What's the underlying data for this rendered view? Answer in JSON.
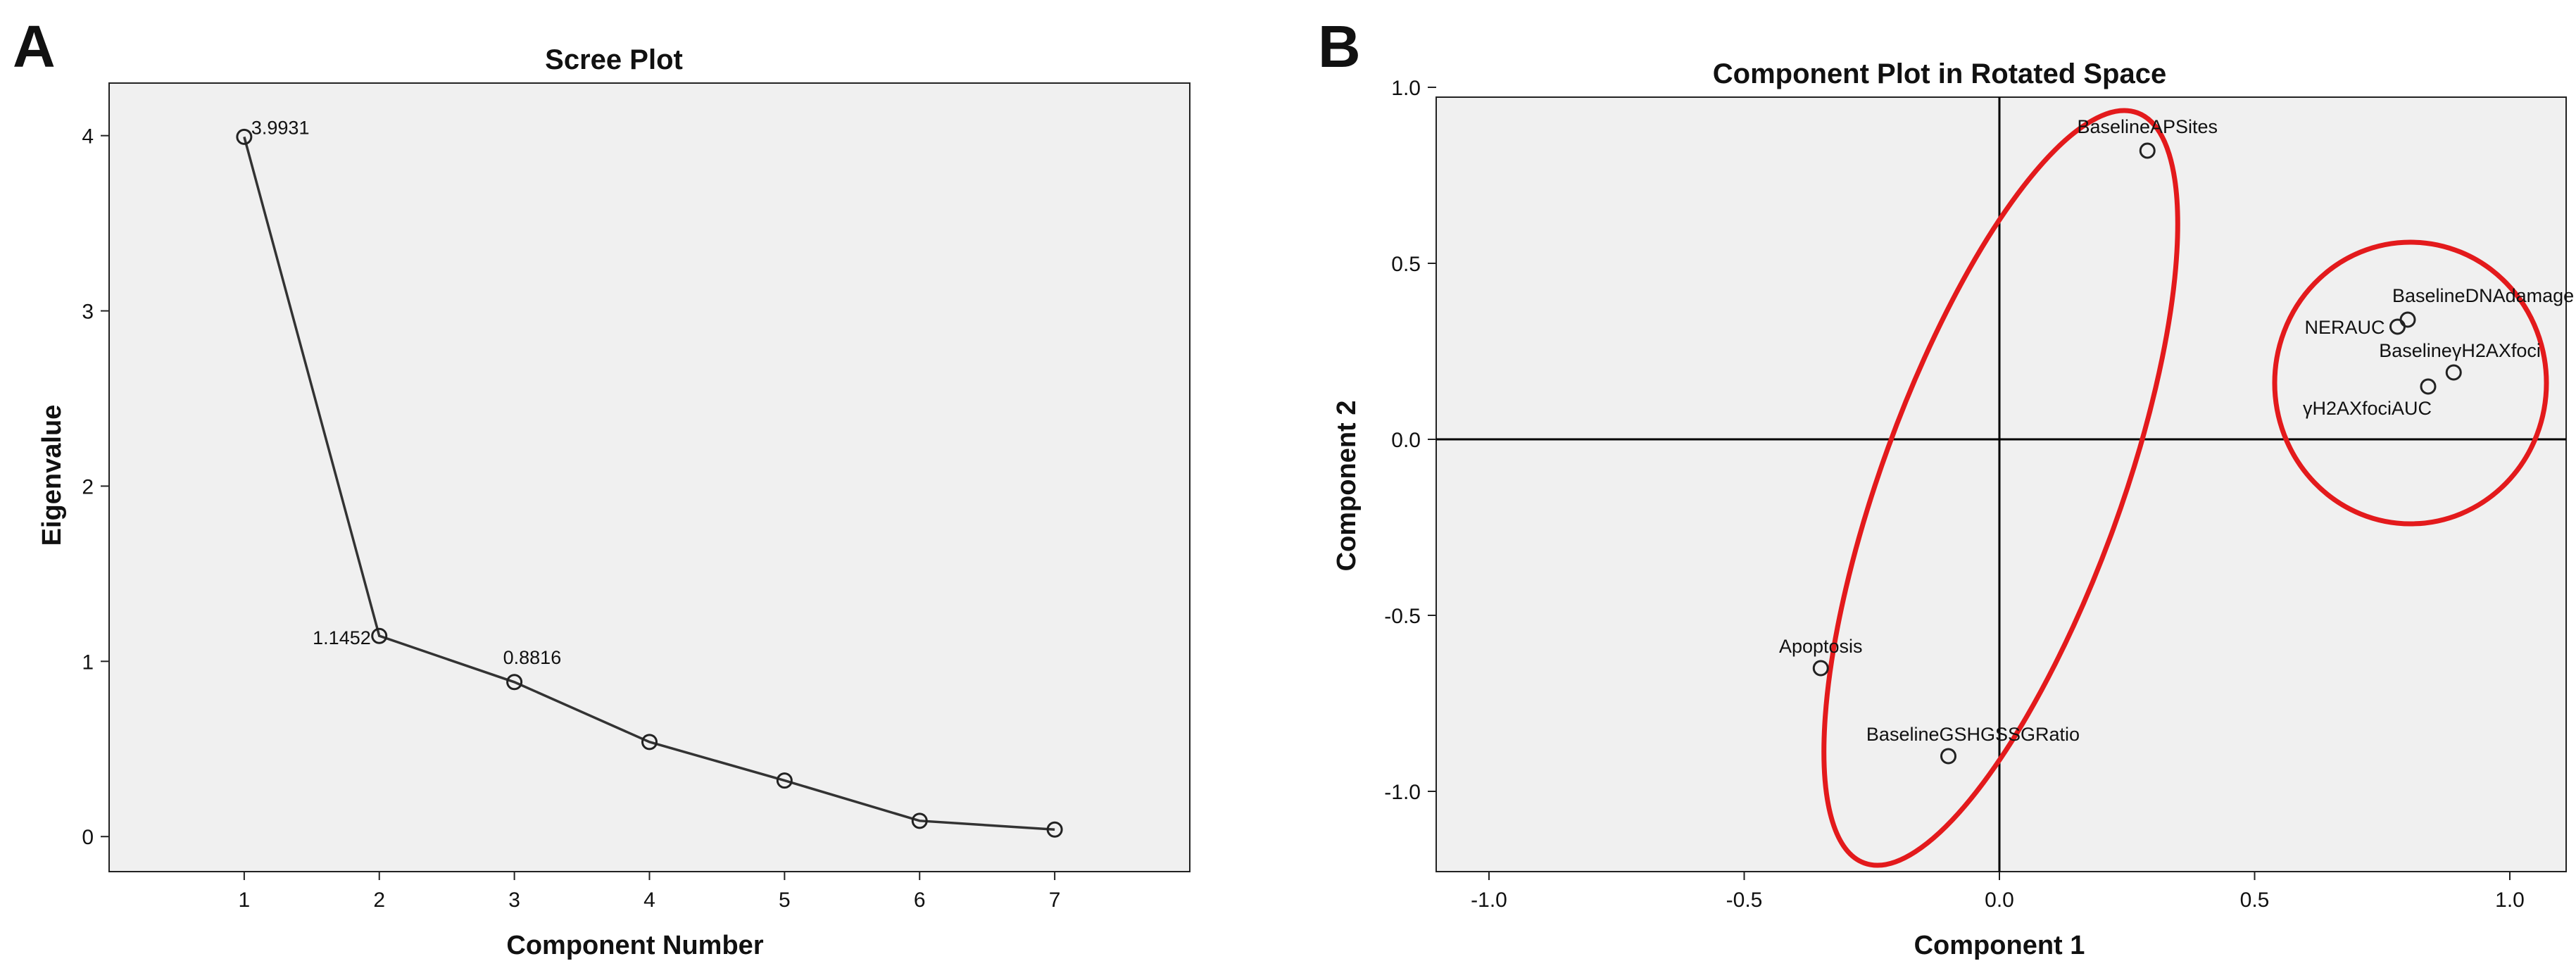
{
  "panels": {
    "a_label": "A",
    "b_label": "B"
  },
  "chart_data": [
    {
      "type": "line",
      "title": "Scree Plot",
      "xlabel": "Component Number",
      "ylabel": "Eigenvalue",
      "x": [
        1,
        2,
        3,
        4,
        5,
        6,
        7
      ],
      "series": [
        {
          "values": [
            3.9931,
            1.1452,
            0.8816,
            0.54,
            0.32,
            0.09,
            0.04
          ]
        }
      ],
      "data_labels": [
        {
          "index": 0,
          "text": "3.9931"
        },
        {
          "index": 1,
          "text": "1.1452"
        },
        {
          "index": 2,
          "text": "0.8816"
        }
      ],
      "xlim": [
        0,
        8
      ],
      "ylim": [
        -0.2,
        4.3
      ],
      "xticks": [
        "1",
        "2",
        "3",
        "4",
        "5",
        "6",
        "7"
      ],
      "yticks": [
        "0",
        "1",
        "2",
        "3",
        "4"
      ],
      "grid": false,
      "colors": {
        "plot_bg": "#f0f0f0",
        "line": "#333333"
      }
    },
    {
      "type": "scatter",
      "title": "Component Plot in Rotated Space",
      "xlabel": "Component 1",
      "ylabel": "Component 2",
      "points": [
        {
          "label": "BaselineAPSites",
          "x": 0.29,
          "y": 0.82
        },
        {
          "label": "BaselineDNAdamage",
          "x": 0.8,
          "y": 0.34
        },
        {
          "label": "NERAUC",
          "x": 0.78,
          "y": 0.32
        },
        {
          "label": "BaselineγH2AXfoci",
          "x": 0.89,
          "y": 0.19
        },
        {
          "label": "γH2AXfociAUC",
          "x": 0.84,
          "y": 0.15
        },
        {
          "label": "Apoptosis",
          "x": -0.35,
          "y": -0.65
        },
        {
          "label": "BaselineGSHGSSGRatio",
          "x": -0.1,
          "y": -0.9
        }
      ],
      "xlim": [
        -1.1,
        1.1
      ],
      "ylim": [
        -1.1,
        1.1
      ],
      "xticks": [
        "-1.0",
        "-0.5",
        "0.0",
        "0.5",
        "1.0"
      ],
      "yticks": [
        "1.0",
        "0.5",
        "0.0",
        "-0.5",
        "-1.0"
      ],
      "grid": false,
      "annotations": [
        {
          "shape": "ellipse",
          "color": "#e31a1c",
          "encloses": [
            "BaselineAPSites",
            "Apoptosis",
            "BaselineGSHGSSGRatio"
          ]
        },
        {
          "shape": "circle",
          "color": "#e31a1c",
          "encloses": [
            "BaselineDNAdamage",
            "NERAUC",
            "BaselineγH2AXfoci",
            "γH2AXfociAUC"
          ]
        }
      ],
      "colors": {
        "plot_bg": "#f0f0f0",
        "axis_lines": "#000000"
      }
    }
  ]
}
